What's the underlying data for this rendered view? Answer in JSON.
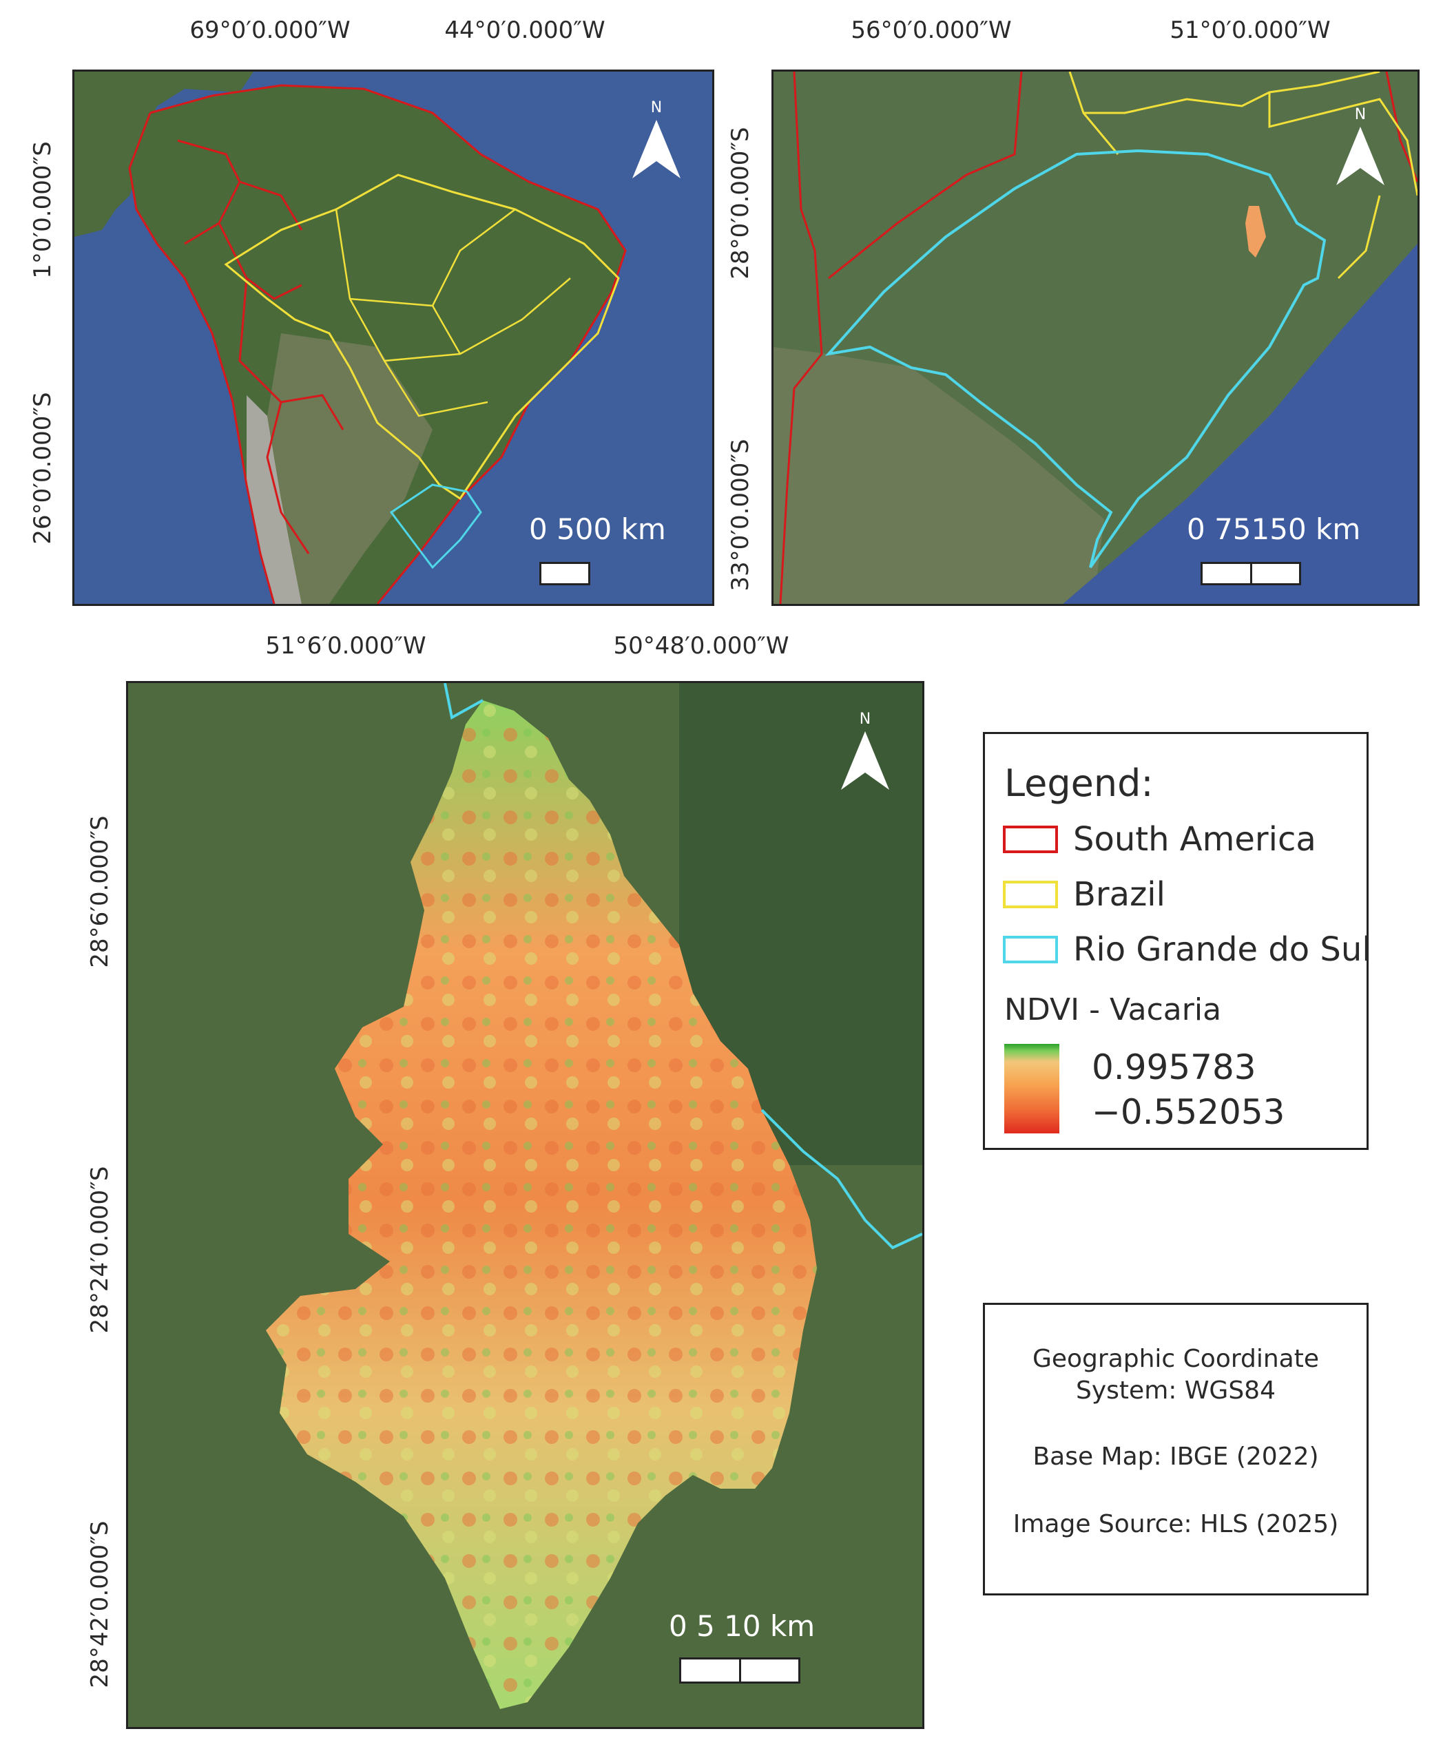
{
  "panels": {
    "south_america": {
      "top_ticks": [
        "69°0′0.000″W",
        "44°0′0.000″W"
      ],
      "left_ticks": [
        "1°0′0.000″S",
        "26°0′0.000″S"
      ],
      "north_label": "N",
      "scale_label": "0  500 km"
    },
    "rio_grande_do_sul": {
      "top_ticks": [
        "56°0′0.000″W",
        "51°0′0.000″W"
      ],
      "left_ticks": [
        "28°0′0.000″S",
        "33°0′0.000″S"
      ],
      "north_label": "N",
      "scale_label": "0   75150 km"
    },
    "vacaria": {
      "top_ticks": [
        "51°6′0.000″W",
        "50°48′0.000″W"
      ],
      "left_ticks": [
        "28°6′0.000″S",
        "28°24′0.000″S",
        "28°42′0.000″S"
      ],
      "north_label": "N",
      "scale_label": "0    5   10 km"
    }
  },
  "legend": {
    "title": "Legend:",
    "items": [
      {
        "label": "South America",
        "color": "#d7191c"
      },
      {
        "label": "Brazil",
        "color": "#f2e03a"
      },
      {
        "label": "Rio Grande do Sul",
        "color": "#4fd6e8"
      }
    ],
    "ndvi_title": "NDVI - Vacaria",
    "ndvi_max": "0.995783",
    "ndvi_min": "−0.552053",
    "ramp_colors": [
      "#2ca02c",
      "#f4c77b",
      "#e02a1e"
    ]
  },
  "info": {
    "line1": "Geographic Coordinate",
    "line2": "System: WGS84",
    "line3": "Base Map: IBGE (2022)",
    "line4": "Image Source: HLS (2025)"
  }
}
